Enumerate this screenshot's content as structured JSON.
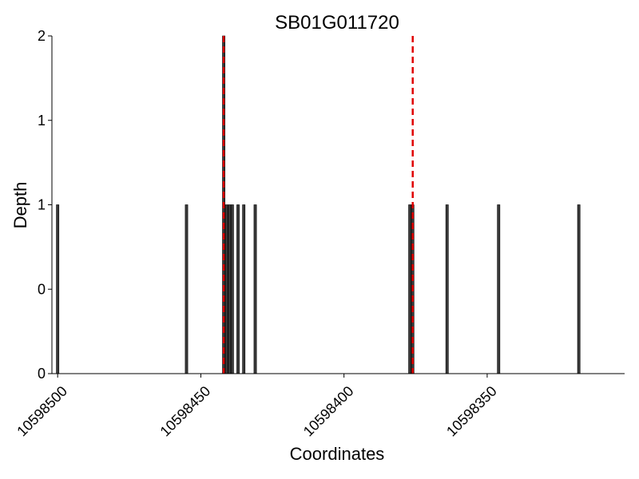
{
  "chart_data": {
    "type": "bar",
    "title": "SB01G011720",
    "xlabel": "Coordinates",
    "ylabel": "Depth",
    "x_reversed": true,
    "xlim": [
      10598302,
      10598502
    ],
    "ylim": [
      0,
      2
    ],
    "y_ticks": [
      0,
      0.5,
      1,
      1.5,
      2
    ],
    "y_tick_labels": [
      "0",
      "0",
      "1",
      "1",
      "2"
    ],
    "x_ticks": [
      10598500,
      10598450,
      10598400,
      10598350
    ],
    "x_tick_labels": [
      "10598500",
      "10598450",
      "10598400",
      "10598350"
    ],
    "bars": [
      {
        "x": 10598500,
        "depth": 1
      },
      {
        "x": 10598455,
        "depth": 1
      },
      {
        "x": 10598442,
        "depth": 2
      },
      {
        "x": 10598441,
        "depth": 1
      },
      {
        "x": 10598440,
        "depth": 1
      },
      {
        "x": 10598439,
        "depth": 1
      },
      {
        "x": 10598437,
        "depth": 1
      },
      {
        "x": 10598435,
        "depth": 1
      },
      {
        "x": 10598431,
        "depth": 1
      },
      {
        "x": 10598377,
        "depth": 1
      },
      {
        "x": 10598376,
        "depth": 1
      },
      {
        "x": 10598364,
        "depth": 1
      },
      {
        "x": 10598346,
        "depth": 1
      },
      {
        "x": 10598318,
        "depth": 1
      }
    ],
    "reference_lines": [
      {
        "x": 10598442,
        "color": "#e00000",
        "style": "dashed"
      },
      {
        "x": 10598376,
        "color": "#e00000",
        "style": "dashed"
      }
    ],
    "bar_color": "#3a3a3a",
    "grid": false
  }
}
